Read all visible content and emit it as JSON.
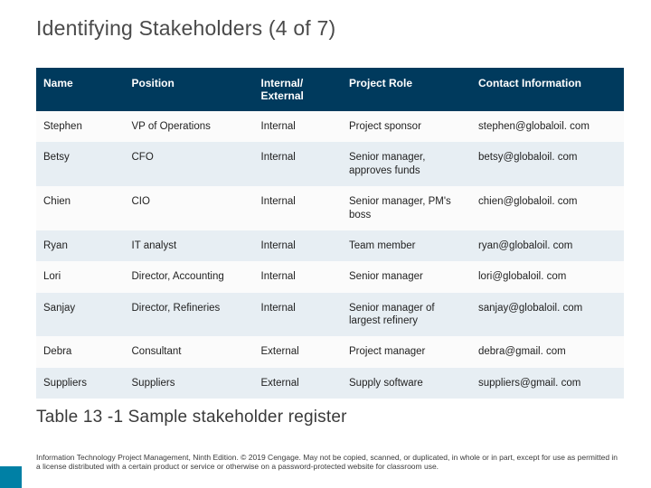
{
  "title": "Identifying Stakeholders (4 of 7)",
  "table": {
    "columns": [
      "Name",
      "Position",
      "Internal/ External",
      "Project Role",
      "Contact Information"
    ],
    "column_widths_pct": [
      15,
      22,
      15,
      22,
      26
    ],
    "header_bg": "#003a5d",
    "header_fg": "#ffffff",
    "header_fontsize": 12,
    "body_fontsize": 11.5,
    "row_bg_odd": "#fbfbfb",
    "row_bg_even": "#e7eef3",
    "rows": [
      {
        "name": "Stephen",
        "position": "VP of Operations",
        "ie": "Internal",
        "role": "Project sponsor",
        "contact": "stephen@globaloil. com"
      },
      {
        "name": "Betsy",
        "position": "CFO",
        "ie": "Internal",
        "role": "Senior manager, approves funds",
        "contact": "betsy@globaloil. com"
      },
      {
        "name": "Chien",
        "position": "CIO",
        "ie": "Internal",
        "role": "Senior manager, PM's boss",
        "contact": "chien@globaloil. com"
      },
      {
        "name": "Ryan",
        "position": "IT analyst",
        "ie": "Internal",
        "role": "Team member",
        "contact": "ryan@globaloil. com"
      },
      {
        "name": "Lori",
        "position": "Director, Accounting",
        "ie": "Internal",
        "role": "Senior manager",
        "contact": "lori@globaloil. com"
      },
      {
        "name": "Sanjay",
        "position": "Director, Refineries",
        "ie": "Internal",
        "role": "Senior manager of largest refinery",
        "contact": "sanjay@globaloil. com"
      },
      {
        "name": "Debra",
        "position": "Consultant",
        "ie": "External",
        "role": "Project manager",
        "contact": "debra@gmail. com"
      },
      {
        "name": "Suppliers",
        "position": "Suppliers",
        "ie": "External",
        "role": "Supply software",
        "contact": "suppliers@gmail. com"
      }
    ]
  },
  "caption": "Table 13 -1 Sample stakeholder register",
  "footer": "Information Technology Project Management, Ninth Edition. © 2019 Cengage. May not be copied, scanned, or duplicated, in whole or in part, except for use as permitted in a license distributed with a certain product or service or otherwise on a password-protected website for classroom use.",
  "accent_color": "#0080a5",
  "title_color": "#4a4a4a",
  "title_fontsize": 23,
  "caption_fontsize": 19,
  "footer_fontsize": 8.5
}
